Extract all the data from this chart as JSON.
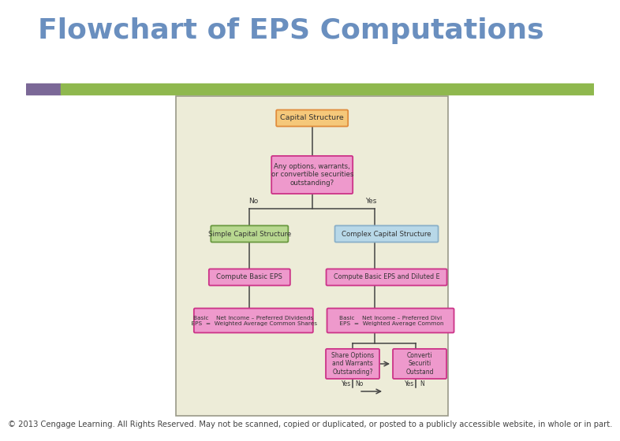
{
  "title": "Flowchart of EPS Computations",
  "title_color": "#6a8fbf",
  "title_fontsize": 26,
  "bg_color": "#ffffff",
  "bar_purple": "#7b6897",
  "bar_green": "#8fb84e",
  "footer": "© 2013 Cengage Learning. All Rights Reserved. May not be scanned, copied or duplicated, or posted to a publicly accessible website, in whole or in part.",
  "footer_fontsize": 7.2,
  "chart_bg": "#edecd8",
  "chart_border": "#999988",
  "box_orange_fill": "#f5c87a",
  "box_orange_border": "#e08c3c",
  "box_pink_fill": "#ee99cc",
  "box_pink_border": "#cc3388",
  "box_green_fill": "#b8d890",
  "box_green_border": "#6a9940",
  "box_blue_fill": "#b8d8e8",
  "box_blue_border": "#8ab0c8",
  "text_color": "#333333",
  "line_color": "#444444"
}
